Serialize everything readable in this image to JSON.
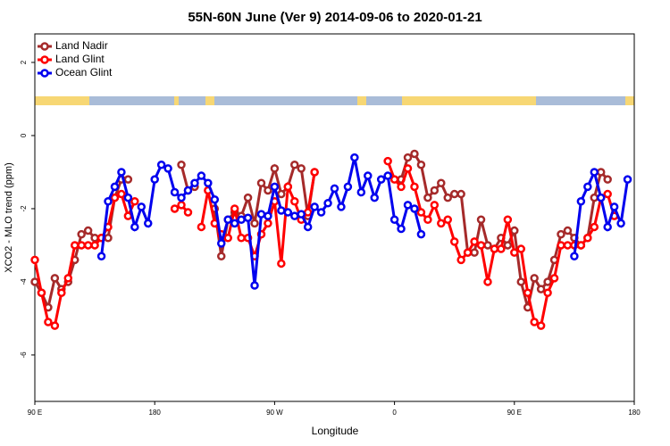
{
  "chart_data": {
    "type": "line",
    "title": "55N-60N June (Ver 9)   2014-09-06 to 2020-01-21",
    "x_label": "Longitude",
    "y_label": "XCO2 - MLO trend (ppm)",
    "legend": "top-left",
    "xlim": [
      90,
      540
    ],
    "ylim": [
      -7.27,
      2.78
    ],
    "xticks": [
      {
        "value": 90,
        "label": "90 E"
      },
      {
        "value": 180,
        "label": "180"
      },
      {
        "value": 270,
        "label": "90 W"
      },
      {
        "value": 360,
        "label": "0"
      },
      {
        "value": 450,
        "label": "90 E"
      },
      {
        "value": 540,
        "label": "180"
      }
    ],
    "yticks": [
      -6,
      -4,
      -2,
      0,
      2
    ],
    "x": [
      90,
      95,
      100,
      105,
      110,
      115,
      120,
      125,
      130,
      135,
      140,
      145,
      150,
      155,
      160,
      165,
      170,
      175,
      180,
      185,
      190,
      195,
      200,
      205,
      210,
      215,
      220,
      225,
      230,
      235,
      240,
      245,
      250,
      255,
      260,
      265,
      270,
      275,
      280,
      285,
      290,
      295,
      300,
      305,
      310,
      315,
      320,
      325,
      330,
      335,
      340,
      345,
      350,
      355,
      360,
      365,
      370,
      375,
      380,
      385,
      390,
      395,
      400,
      405,
      410,
      415,
      420,
      425,
      430,
      435,
      440,
      445,
      450,
      455,
      460,
      465,
      470,
      475,
      480,
      485,
      490,
      495,
      500,
      505,
      510,
      515,
      520,
      525,
      530,
      535,
      540
    ],
    "series": [
      {
        "name": "Land Nadir",
        "color": "#a52a2a",
        "values": [
          -4.0,
          -4.3,
          -4.7,
          -3.9,
          -4.2,
          -4.0,
          -3.4,
          -2.7,
          -2.6,
          -2.8,
          -2.8,
          -2.8,
          -1.7,
          -1.2,
          -1.2,
          null,
          null,
          null,
          null,
          null,
          null,
          null,
          -0.8,
          -1.5,
          -1.4,
          null,
          null,
          -2.0,
          -3.3,
          -2.3,
          -2.1,
          -2.2,
          -1.7,
          -2.4,
          -1.3,
          -1.5,
          -0.9,
          -1.6,
          -1.4,
          -0.8,
          -0.9,
          -2.2,
          -1.0,
          null,
          null,
          null,
          null,
          null,
          null,
          null,
          null,
          null,
          null,
          null,
          null,
          -1.2,
          -0.6,
          -0.5,
          -0.8,
          -1.7,
          -1.5,
          -1.3,
          -1.7,
          -1.6,
          -1.6,
          -3.2,
          -3.2,
          -2.3,
          -3.0,
          -3.1,
          -2.8,
          -3.0,
          -2.6,
          -4.0,
          -4.7,
          -3.9,
          -4.2,
          -4.0,
          -3.4,
          -2.7,
          -2.6,
          -2.8,
          -3.0,
          -2.8,
          -1.7,
          -1.0,
          -1.2,
          null,
          null,
          null,
          null
        ]
      },
      {
        "name": "Land Glint",
        "color": "#ff0000",
        "values": [
          -3.4,
          -4.3,
          -5.1,
          -5.2,
          -4.3,
          -3.9,
          -3.0,
          -3.0,
          -3.0,
          -3.0,
          -2.8,
          -2.5,
          -1.7,
          -1.6,
          -2.2,
          -1.8,
          null,
          null,
          null,
          null,
          null,
          -2.0,
          -1.9,
          -2.1,
          null,
          -2.5,
          -1.5,
          -2.4,
          -2.7,
          -2.8,
          -2.0,
          -2.8,
          -2.8,
          -3.3,
          -2.7,
          -2.4,
          -1.8,
          -3.5,
          -1.4,
          -1.8,
          -2.3,
          -2.1,
          -1.0,
          null,
          null,
          null,
          null,
          null,
          null,
          null,
          null,
          null,
          null,
          -0.7,
          -1.2,
          -1.4,
          -0.9,
          -1.4,
          -2.1,
          -2.3,
          -1.9,
          -2.4,
          -2.3,
          -2.9,
          -3.4,
          -3.2,
          -2.9,
          -3.0,
          -4.0,
          -3.1,
          -3.1,
          -2.3,
          -3.2,
          -3.1,
          -4.3,
          -5.1,
          -5.2,
          -4.3,
          -3.9,
          -3.0,
          -3.0,
          -3.0,
          -3.0,
          -2.8,
          -2.5,
          -1.7,
          -1.6,
          -2.2,
          null,
          null,
          null
        ]
      },
      {
        "name": "Ocean Glint",
        "color": "#0000ee",
        "values": [
          null,
          null,
          null,
          null,
          null,
          null,
          null,
          null,
          null,
          null,
          -3.3,
          -1.8,
          -1.4,
          -1.0,
          -1.7,
          -2.5,
          -1.95,
          -2.4,
          -1.2,
          -0.8,
          -0.9,
          -1.55,
          -1.7,
          -1.5,
          -1.3,
          -1.1,
          -1.3,
          -1.75,
          -2.95,
          -2.3,
          -2.4,
          -2.3,
          -2.25,
          -4.1,
          -2.15,
          -2.2,
          -1.4,
          -2.05,
          -2.1,
          -2.2,
          -2.15,
          -2.5,
          -1.95,
          -2.1,
          -1.85,
          -1.45,
          -1.95,
          -1.4,
          -0.6,
          -1.55,
          -1.1,
          -1.7,
          -1.2,
          -1.1,
          -2.3,
          -2.55,
          -1.9,
          -2.0,
          -2.7,
          null,
          null,
          null,
          null,
          null,
          null,
          null,
          null,
          null,
          null,
          null,
          null,
          null,
          null,
          null,
          null,
          null,
          null,
          null,
          null,
          null,
          null,
          -3.3,
          -1.8,
          -1.4,
          -1.0,
          -1.7,
          -2.5,
          -1.95,
          -2.4,
          -1.2,
          null
        ]
      }
    ]
  }
}
